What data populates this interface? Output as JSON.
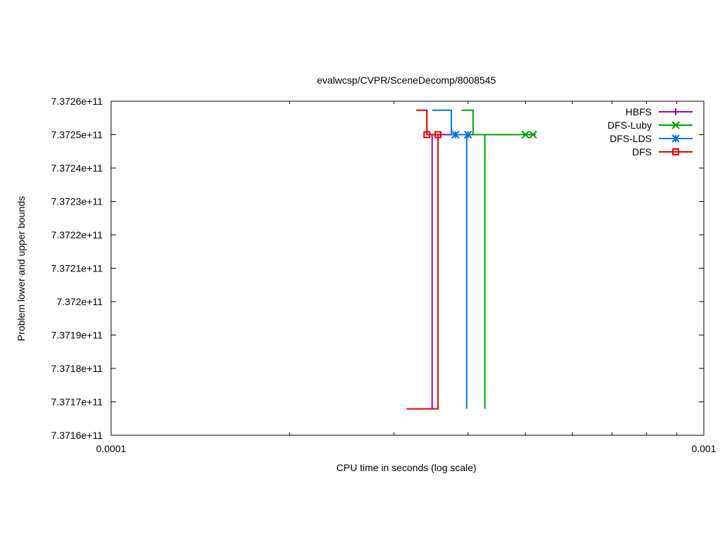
{
  "chart_data": {
    "type": "line",
    "title": "evalwcsp/CVPR/SceneDecomp/8008545",
    "xlabel": "CPU time in seconds (log scale)",
    "ylabel": "Problem lower and upper bounds",
    "x_scale": "log",
    "xlim": [
      0.0001,
      0.001
    ],
    "ylim": [
      737160000000,
      737260000000
    ],
    "x_ticks": [
      {
        "value": 0.0001,
        "label": "0.0001"
      },
      {
        "value": 0.001,
        "label": "0.001"
      }
    ],
    "y_ticks": [
      {
        "value": 737160000000,
        "label": "7.3716e+11"
      },
      {
        "value": 737170000000,
        "label": "7.3717e+11"
      },
      {
        "value": 737180000000,
        "label": "7.3718e+11"
      },
      {
        "value": 737190000000,
        "label": "7.3719e+11"
      },
      {
        "value": 737200000000,
        "label": "7.372e+11"
      },
      {
        "value": 737210000000,
        "label": "7.3721e+11"
      },
      {
        "value": 737220000000,
        "label": "7.3722e+11"
      },
      {
        "value": 737230000000,
        "label": "7.3723e+11"
      },
      {
        "value": 737240000000,
        "label": "7.3724e+11"
      },
      {
        "value": 737250000000,
        "label": "7.3725e+11"
      }
    ],
    "y_top_tick_label": "7.3726e+11",
    "grid": false,
    "legend_position": "top-right",
    "series": [
      {
        "name": "HBFS",
        "color": "#9400d3",
        "marker": "plus",
        "upper": [
          [
            0.000348,
            737250000000
          ],
          [
            0.00052,
            737250000000
          ]
        ],
        "lower": [
          [
            0.000348,
            737167900000
          ],
          [
            0.000348,
            737250000000
          ]
        ],
        "marker_points": []
      },
      {
        "name": "DFS-Luby",
        "color": "#00a000",
        "marker": "x",
        "upper": [
          [
            0.00039,
            737257300000
          ],
          [
            0.000408,
            737257300000
          ],
          [
            0.000408,
            737250000000
          ],
          [
            0.000515,
            737250000000
          ]
        ],
        "lower": [
          [
            0.000427,
            737167900000
          ],
          [
            0.000427,
            737250000000
          ]
        ],
        "marker_points": [
          [
            0.0005,
            737250000000
          ],
          [
            0.000515,
            737250000000
          ]
        ]
      },
      {
        "name": "DFS-LDS",
        "color": "#0072e8",
        "marker": "star",
        "upper": [
          [
            0.000348,
            737257300000
          ],
          [
            0.000375,
            737257300000
          ],
          [
            0.000375,
            737250000000
          ],
          [
            0.0004,
            737250000000
          ]
        ],
        "lower": [
          [
            0.000398,
            737167900000
          ],
          [
            0.000398,
            737250000000
          ]
        ],
        "marker_points": [
          [
            0.000381,
            737250000000
          ],
          [
            0.0004,
            737250000000
          ]
        ]
      },
      {
        "name": "DFS",
        "color": "#e80000",
        "marker": "square",
        "upper": [
          [
            0.000327,
            737257300000
          ],
          [
            0.000341,
            737257300000
          ],
          [
            0.000341,
            737250000000
          ],
          [
            0.000356,
            737250000000
          ]
        ],
        "lower": [
          [
            0.000315,
            737167900000
          ],
          [
            0.000356,
            737167900000
          ],
          [
            0.000356,
            737250000000
          ]
        ],
        "marker_points": [
          [
            0.000341,
            737250000000
          ],
          [
            0.000356,
            737250000000
          ]
        ]
      }
    ]
  }
}
